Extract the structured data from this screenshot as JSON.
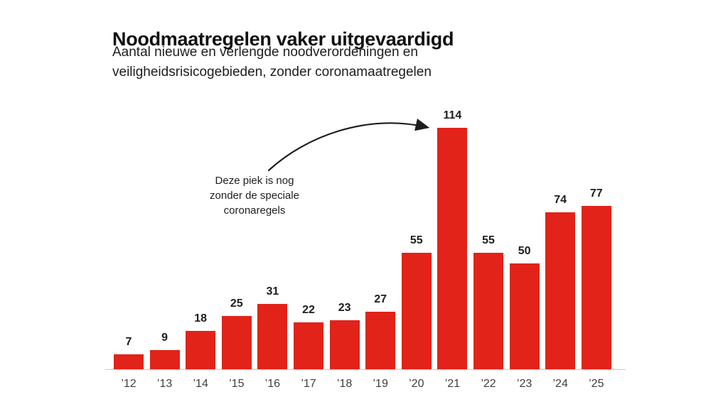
{
  "header": {
    "title": "Noodmaatregelen vaker uitgevaardigd",
    "subtitle": "Aantal nieuwe en verlengde noodverordeningen en\nveiligheidsrisicogebieden, zonder coronamaatregelen"
  },
  "annotation": {
    "text": "Deze piek is nog\nzonder de speciale\ncoronaregels"
  },
  "chart_data": {
    "type": "bar",
    "title": "Noodmaatregelen vaker uitgevaardigd",
    "subtitle": "Aantal nieuwe en verlengde noodverordeningen en veiligheidsrisicogebieden, zonder coronamaatregelen",
    "categories": [
      "’12",
      "’13",
      "’14",
      "’15",
      "’16",
      "’17",
      "’18",
      "’19",
      "’20",
      "’21",
      "’22",
      "’23",
      "’24",
      "’25"
    ],
    "values": [
      7,
      9,
      18,
      25,
      31,
      22,
      23,
      27,
      55,
      114,
      55,
      50,
      74,
      77
    ],
    "xlabel": "",
    "ylabel": "",
    "ylim": [
      0,
      120
    ],
    "grid": false,
    "legend": null,
    "data_labels": true,
    "annotation": "Deze piek is nog zonder de speciale coronaregels",
    "bar_color": "#e2231a",
    "label_color": "#1d1d1b",
    "axis_color": "#c9c9c9"
  }
}
